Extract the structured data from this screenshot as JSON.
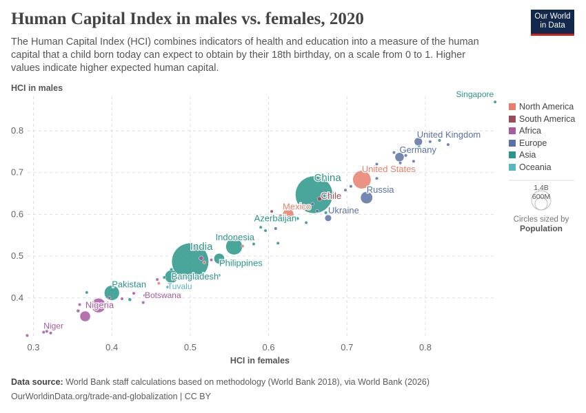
{
  "header": {
    "title": "Human Capital Index in males vs. females, 2020",
    "subtitle": "The Human Capital Index (HCI) combines indicators of health and education into a measure of the human capital that a child born today can expect to obtain by their 18th birthday, on a scale from 0 to 1. Higher values indicate higher expected human capital.",
    "logo_line1": "Our World",
    "logo_line2": "in Data"
  },
  "footer": {
    "source_label": "Data source:",
    "source": "World Bank staff calculations based on methodology (World Bank 2018), via World Bank (2026)",
    "url": "OurWorldinData.org/trade-and-globalization | CC BY"
  },
  "size_legend": {
    "big": "1.4B",
    "small": "600M",
    "caption": "Circles sized by",
    "caption_bold": "Population"
  },
  "chart_data": {
    "type": "scatter",
    "xlabel": "HCI in females",
    "ylabel": "HCI in males",
    "xlim": [
      0.29,
      0.89
    ],
    "ylim": [
      0.306,
      0.87
    ],
    "xticks": [
      "0.3",
      "0.4",
      "0.5",
      "0.6",
      "0.7",
      "0.8"
    ],
    "yticks": [
      "0.4",
      "0.5",
      "0.6",
      "0.7",
      "0.8"
    ],
    "grid": true,
    "legend_position": "right",
    "regions": [
      {
        "name": "North America",
        "color": "#e6806c"
      },
      {
        "name": "South America",
        "color": "#9a4d57"
      },
      {
        "name": "Africa",
        "color": "#a8599f"
      },
      {
        "name": "Europe",
        "color": "#5a72a3"
      },
      {
        "name": "Asia",
        "color": "#2a958a"
      },
      {
        "name": "Oceania",
        "color": "#5ab5c2"
      }
    ],
    "points": [
      {
        "label": "Singapore",
        "x": 0.889,
        "y": 0.869,
        "region": "Asia",
        "pop": 6
      },
      {
        "label": "United Kingdom",
        "x": 0.791,
        "y": 0.774,
        "region": "Europe",
        "pop": 67
      },
      {
        "label": "Germany",
        "x": 0.767,
        "y": 0.737,
        "region": "Europe",
        "pop": 83
      },
      {
        "label": "United States",
        "x": 0.719,
        "y": 0.683,
        "region": "North America",
        "pop": 335
      },
      {
        "label": "China",
        "x": 0.658,
        "y": 0.647,
        "region": "Asia",
        "pop": 1410
      },
      {
        "label": "Chile",
        "x": 0.665,
        "y": 0.637,
        "region": "South America",
        "pop": 19
      },
      {
        "label": "Russia",
        "x": 0.725,
        "y": 0.64,
        "region": "Europe",
        "pop": 145
      },
      {
        "label": "Mexico",
        "x": 0.625,
        "y": 0.6,
        "region": "North America",
        "pop": 126
      },
      {
        "label": "Ukraine",
        "x": 0.676,
        "y": 0.591,
        "region": "Europe",
        "pop": 44
      },
      {
        "label": "Azerbaijan",
        "x": 0.637,
        "y": 0.59,
        "region": "Asia",
        "pop": 10
      },
      {
        "label": "Indonesia",
        "x": 0.556,
        "y": 0.523,
        "region": "Asia",
        "pop": 274
      },
      {
        "label": "Philippines",
        "x": 0.537,
        "y": 0.494,
        "region": "Asia",
        "pop": 112
      },
      {
        "label": "India",
        "x": 0.5,
        "y": 0.487,
        "region": "Asia",
        "pop": 1380
      },
      {
        "label": "Bangladesh",
        "x": 0.476,
        "y": 0.451,
        "region": "Asia",
        "pop": 167
      },
      {
        "label": "Tuvalu",
        "x": 0.471,
        "y": 0.426,
        "region": "Oceania",
        "pop": 1
      },
      {
        "label": "Pakistan",
        "x": 0.4,
        "y": 0.412,
        "region": "Asia",
        "pop": 227
      },
      {
        "label": "Botswana",
        "x": 0.442,
        "y": 0.406,
        "region": "Africa",
        "pop": 2
      },
      {
        "label": "Nigeria",
        "x": 0.383,
        "y": 0.382,
        "region": "Africa",
        "pop": 208
      },
      {
        "label": "Niger",
        "x": 0.313,
        "y": 0.318,
        "region": "Africa",
        "pop": 5
      },
      {
        "x": 0.366,
        "y": 0.356,
        "region": "Africa",
        "pop": 110
      },
      {
        "x": 0.292,
        "y": 0.31,
        "region": "Africa",
        "pop": 3
      },
      {
        "x": 0.317,
        "y": 0.32,
        "region": "Africa",
        "pop": 3
      },
      {
        "x": 0.322,
        "y": 0.316,
        "region": "Africa",
        "pop": 3
      },
      {
        "x": 0.357,
        "y": 0.369,
        "region": "Africa",
        "pop": 12
      },
      {
        "x": 0.359,
        "y": 0.384,
        "region": "Africa",
        "pop": 4
      },
      {
        "x": 0.368,
        "y": 0.413,
        "region": "Asia",
        "pop": 10
      },
      {
        "x": 0.397,
        "y": 0.4,
        "region": "Africa",
        "pop": 6
      },
      {
        "x": 0.413,
        "y": 0.398,
        "region": "Africa",
        "pop": 4
      },
      {
        "x": 0.423,
        "y": 0.396,
        "region": "Asia",
        "pop": 12
      },
      {
        "x": 0.428,
        "y": 0.411,
        "region": "Africa",
        "pop": 3
      },
      {
        "x": 0.44,
        "y": 0.389,
        "region": "Africa",
        "pop": 3
      },
      {
        "x": 0.458,
        "y": 0.444,
        "region": "Africa",
        "pop": 8
      },
      {
        "x": 0.46,
        "y": 0.435,
        "region": "North America",
        "pop": 3
      },
      {
        "x": 0.467,
        "y": 0.449,
        "region": "Asia",
        "pop": 3
      },
      {
        "x": 0.476,
        "y": 0.468,
        "region": "Asia",
        "pop": 3
      },
      {
        "x": 0.514,
        "y": 0.495,
        "region": "Africa",
        "pop": 20
      },
      {
        "x": 0.518,
        "y": 0.485,
        "region": "North America",
        "pop": 4
      },
      {
        "x": 0.527,
        "y": 0.491,
        "region": "Africa",
        "pop": 4
      },
      {
        "x": 0.537,
        "y": 0.454,
        "region": "Oceania",
        "pop": 2
      },
      {
        "x": 0.567,
        "y": 0.524,
        "region": "North America",
        "pop": 3
      },
      {
        "x": 0.581,
        "y": 0.529,
        "region": "Asia",
        "pop": 3
      },
      {
        "x": 0.596,
        "y": 0.561,
        "region": "Asia",
        "pop": 8
      },
      {
        "x": 0.59,
        "y": 0.569,
        "region": "Asia",
        "pop": 3
      },
      {
        "x": 0.612,
        "y": 0.531,
        "region": "Asia",
        "pop": 3
      },
      {
        "x": 0.604,
        "y": 0.607,
        "region": "South America",
        "pop": 5
      },
      {
        "x": 0.615,
        "y": 0.596,
        "region": "South America",
        "pop": 12
      },
      {
        "x": 0.609,
        "y": 0.566,
        "region": "Europe",
        "pop": 4
      },
      {
        "x": 0.648,
        "y": 0.58,
        "region": "Asia",
        "pop": 3
      },
      {
        "x": 0.656,
        "y": 0.625,
        "region": "Europe",
        "pop": 3
      },
      {
        "x": 0.662,
        "y": 0.608,
        "region": "Europe",
        "pop": 3
      },
      {
        "x": 0.673,
        "y": 0.604,
        "region": "Asia",
        "pop": 3
      },
      {
        "x": 0.684,
        "y": 0.652,
        "region": "Europe",
        "pop": 3
      },
      {
        "x": 0.698,
        "y": 0.658,
        "region": "Europe",
        "pop": 3
      },
      {
        "x": 0.705,
        "y": 0.667,
        "region": "Europe",
        "pop": 3
      },
      {
        "x": 0.738,
        "y": 0.686,
        "region": "Europe",
        "pop": 4
      },
      {
        "x": 0.738,
        "y": 0.72,
        "region": "Europe",
        "pop": 5
      },
      {
        "x": 0.76,
        "y": 0.748,
        "region": "Europe",
        "pop": 4
      },
      {
        "x": 0.768,
        "y": 0.723,
        "region": "Europe",
        "pop": 6
      },
      {
        "x": 0.785,
        "y": 0.727,
        "region": "Europe",
        "pop": 10
      },
      {
        "x": 0.775,
        "y": 0.741,
        "region": "Europe",
        "pop": 4
      },
      {
        "x": 0.806,
        "y": 0.774,
        "region": "Europe",
        "pop": 3
      },
      {
        "x": 0.818,
        "y": 0.777,
        "region": "Asia",
        "pop": 3
      },
      {
        "x": 0.829,
        "y": 0.767,
        "region": "Europe",
        "pop": 3
      },
      {
        "x": 0.792,
        "y": 0.762,
        "region": "Oceania",
        "pop": 5
      }
    ]
  }
}
